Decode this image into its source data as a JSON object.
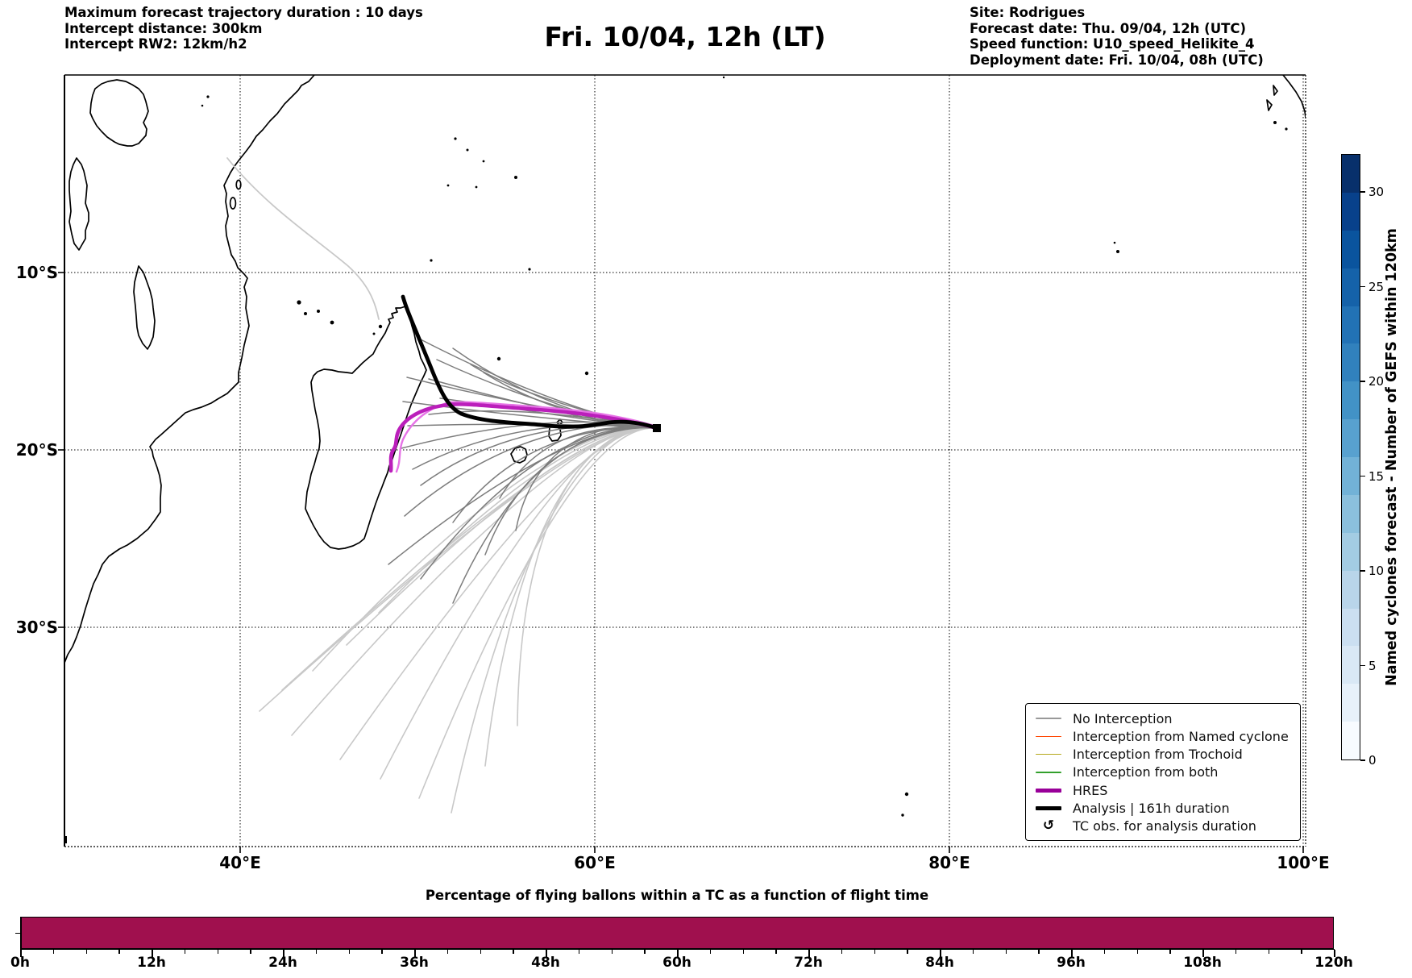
{
  "header": {
    "left_lines": [
      "Maximum forecast trajectory duration : 10 days",
      "Intercept distance: 300km",
      "Intercept RW2: 12km/h2"
    ],
    "title": "Fri. 10/04, 12h (LT)",
    "right_lines": [
      "Site: Rodrigues",
      "Forecast date: Thu. 09/04, 12h (UTC)",
      "Speed function: U10_speed_Helikite_4",
      "Deployment date: Fri. 10/04, 08h (UTC)"
    ]
  },
  "map": {
    "x_tick_labels": [
      "40°E",
      "60°E",
      "80°E",
      "100°E"
    ],
    "y_tick_labels": [
      "10°S",
      "20°S",
      "30°S"
    ],
    "grid": true
  },
  "legend": {
    "items": [
      {
        "label": "No Interception",
        "color": "#999999",
        "lw": 1.6
      },
      {
        "label": "Interception from Named cyclone",
        "color": "#ff4500",
        "lw": 1.6
      },
      {
        "label": "Interception from Trochoid",
        "color": "#b5a91c",
        "lw": 1.6
      },
      {
        "label": "Interception from both",
        "color": "#33a02c",
        "lw": 1.6
      },
      {
        "label": "HRES",
        "color": "#990099",
        "lw": 4.5
      },
      {
        "label": "Analysis | 161h duration",
        "color": "#000000",
        "lw": 4.5
      },
      {
        "label": "TC obs. for analysis duration",
        "color": "#000000",
        "symbol": "↺"
      }
    ]
  },
  "colorbar": {
    "label": "Named cyclones forecast - Number of GEFS within 120km",
    "tick_values": [
      0,
      5,
      10,
      15,
      20,
      25,
      30
    ],
    "vmin": 0,
    "vmax": 32,
    "colors_bottom_to_top": [
      "#f7fbff",
      "#e7f1fa",
      "#d9e8f5",
      "#cbdff1",
      "#b9d5ea",
      "#a3cce3",
      "#8bc0dd",
      "#72b2d7",
      "#58a1cf",
      "#4292c6",
      "#3181bd",
      "#2272b5",
      "#1562a9",
      "#0a549e",
      "#08418b",
      "#08306b"
    ]
  },
  "bottom_chart": {
    "title": "Percentage of flying ballons within a TC as a function of flight time",
    "x_tick_labels": [
      "0h",
      "12h",
      "24h",
      "36h",
      "48h",
      "60h",
      "72h",
      "84h",
      "96h",
      "108h",
      "120h"
    ],
    "bar_color": "#a0104e"
  },
  "chart_data": [
    {
      "type": "map-trajectories",
      "title": "Fri. 10/04, 12h (LT)",
      "projection": "PlateCarree",
      "lon_range_E": [
        30,
        100
      ],
      "lat_range_S": [
        -1,
        42
      ],
      "x_gridlines_E": [
        40,
        60,
        80,
        100
      ],
      "y_gridlines_S": [
        10,
        20,
        30
      ],
      "site": "Rodrigues",
      "trajectory_origin": {
        "lon_E": 63.5,
        "lat_S": 19.5
      },
      "series": [
        {
          "name": "No Interception (GEFS ensemble balloon trajectories)",
          "style": "thin gray / light-gray",
          "count_approx": 34,
          "behavior": "fan west from Rodrigues along 18-21°S toward Madagascar, many curving southwest down to 28-33°S"
        },
        {
          "name": "HRES",
          "style": "thick magenta",
          "behavior": "west from Rodrigues along ~19°S then south along Madagascar east coast to ~21°S"
        },
        {
          "name": "Analysis | 161h duration",
          "style": "thick black",
          "behavior": "from northern tip of Madagascar (~49.5°E, 12°S) southeast then east along ~19.5°S ending at Rodrigues (~63.5°E, 19.5°S) with square end marker"
        }
      ]
    },
    {
      "type": "bar",
      "title": "Percentage of flying ballons within a TC as a function of flight time",
      "categories_h": [
        0,
        12,
        24,
        36,
        48,
        60,
        72,
        84,
        96,
        108,
        120
      ],
      "values_pct": [
        100,
        100,
        100,
        100,
        100,
        100,
        100,
        100,
        100,
        100,
        100
      ],
      "note": "single continuous full-height bar spanning 0h-120h, color dark crimson, no y-axis labels shown",
      "xlabel": "flight time",
      "ylabel": ""
    },
    {
      "type": "heatmap-colorbar",
      "label": "Named cyclones forecast - Number of GEFS within 120km",
      "ticks": [
        0,
        5,
        10,
        15,
        20,
        25,
        30
      ],
      "range": [
        0,
        32
      ],
      "colormap": "Blues",
      "n_discrete_blocks": 16
    }
  ]
}
